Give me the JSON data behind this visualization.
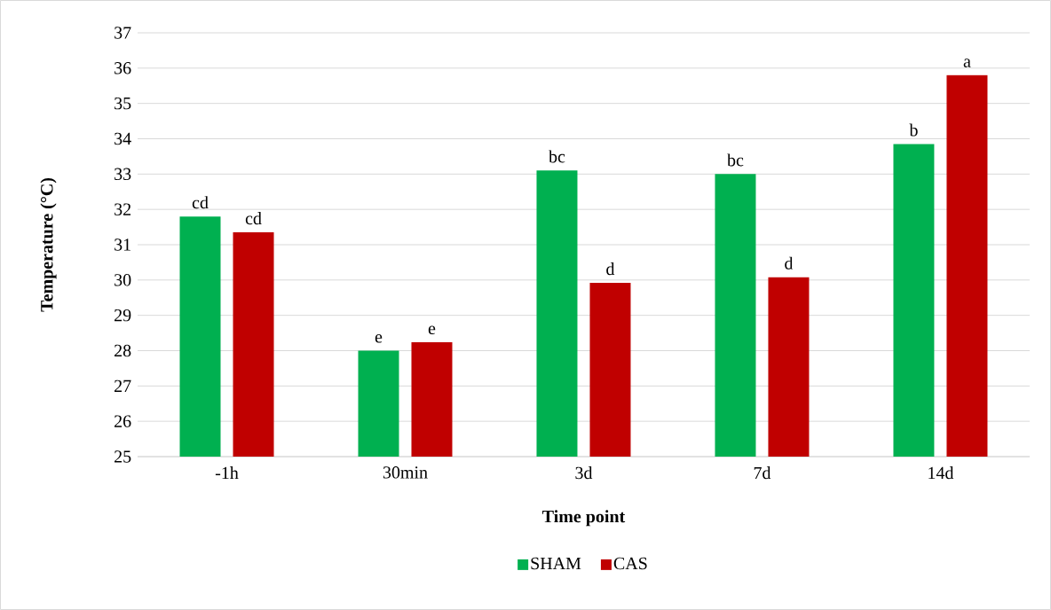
{
  "chart_data": {
    "type": "bar",
    "xlabel": "Time point",
    "ylabel": "Temperature (°C)",
    "categories": [
      "-1h",
      "30min",
      "3d",
      "7d",
      "14d"
    ],
    "series": [
      {
        "name": "SHAM",
        "color": "#00b050",
        "values": [
          31.8,
          28.0,
          33.1,
          33.0,
          33.85
        ],
        "value_labels": [
          "cd",
          "e",
          "bc",
          "bc",
          "b"
        ]
      },
      {
        "name": "CAS",
        "color": "#c00000",
        "values": [
          31.35,
          28.24,
          29.92,
          30.08,
          35.8
        ],
        "value_labels": [
          "cd",
          "e",
          "d",
          "d",
          "a"
        ]
      }
    ],
    "ylim": [
      25,
      37
    ],
    "yticks": [
      25,
      26,
      27,
      28,
      29,
      30,
      31,
      32,
      33,
      34,
      35,
      36,
      37
    ],
    "grid": "y",
    "legend": "bottom"
  }
}
